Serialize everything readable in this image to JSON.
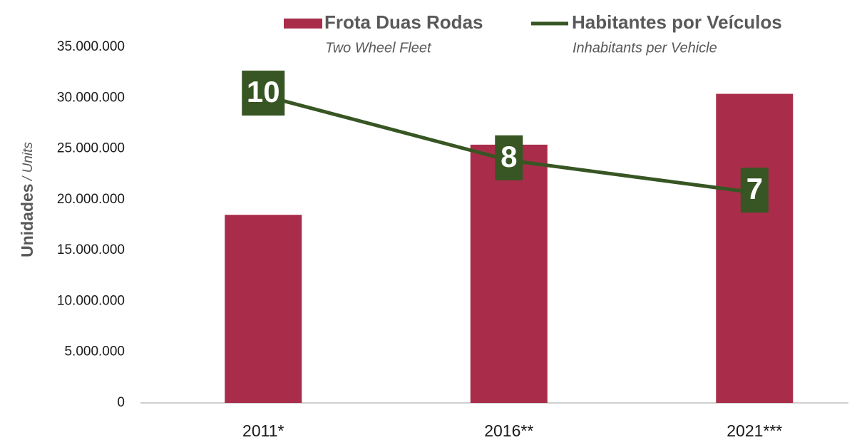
{
  "chart_data": {
    "type": "bar_line",
    "categories": [
      "2011*",
      "2016**",
      "2021***"
    ],
    "series": [
      {
        "name": "Frota Duas Rodas",
        "subname": "Two Wheel Fleet",
        "type": "bar",
        "color": "#a92d4a",
        "values": [
          18500000,
          25400000,
          30400000
        ]
      },
      {
        "name": "Habitantes por Veículos",
        "subname": "Inhabitants per Vehicle",
        "type": "line",
        "axis": "y2",
        "color": "#375623",
        "values": [
          10,
          8,
          7
        ]
      }
    ],
    "ylabel": "Unidades",
    "ylabel_sub": "/ Units",
    "ylim": [
      0,
      35000000
    ],
    "yticks": [
      0,
      {
        "value": 5000000,
        "label": "5.000.000"
      },
      {
        "value": 10000000,
        "label": "10.000.000"
      },
      {
        "value": 15000000,
        "label": "15.000.000"
      },
      {
        "value": 20000000,
        "label": "20.000.000"
      },
      {
        "value": 25000000,
        "label": "25.000.000"
      },
      {
        "value": 30000000,
        "label": "30.000.000"
      },
      {
        "value": 35000000,
        "label": "35.000.000"
      }
    ],
    "y2lim": [
      0.5,
      11.5
    ],
    "grid": false,
    "legend": "top"
  }
}
